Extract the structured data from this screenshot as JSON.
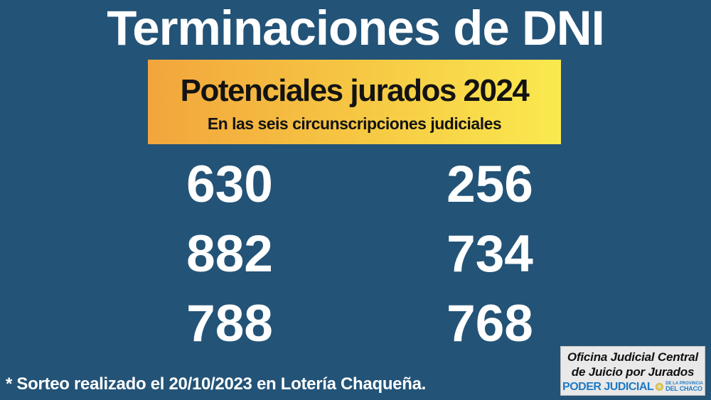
{
  "title": "Terminaciones de DNI",
  "banner": {
    "title": "Potenciales jurados 2024",
    "subtitle": "En las seis circunscripciones judiciales",
    "gradient_start": "#F2A53C",
    "gradient_end": "#FAE94F",
    "text_color": "#131313"
  },
  "numbers": {
    "left": [
      "630",
      "882",
      "788"
    ],
    "right": [
      "256",
      "734",
      "768"
    ]
  },
  "footnote": "* Sorteo realizado el 20/10/2023 en Lotería Chaqueña.",
  "logo_box": {
    "line1": "Oficina Judicial Central",
    "line2": "de Juicio por Jurados",
    "brand": "PODER JUDICIAL",
    "brand_sub1": "DE LA PROVINCIA",
    "brand_sub2": "DEL CHACO",
    "brand_color": "#1E7AC4",
    "box_background": "#E9E9E9"
  },
  "colors": {
    "background": "#235377",
    "text_light": "#FFFFFF"
  }
}
